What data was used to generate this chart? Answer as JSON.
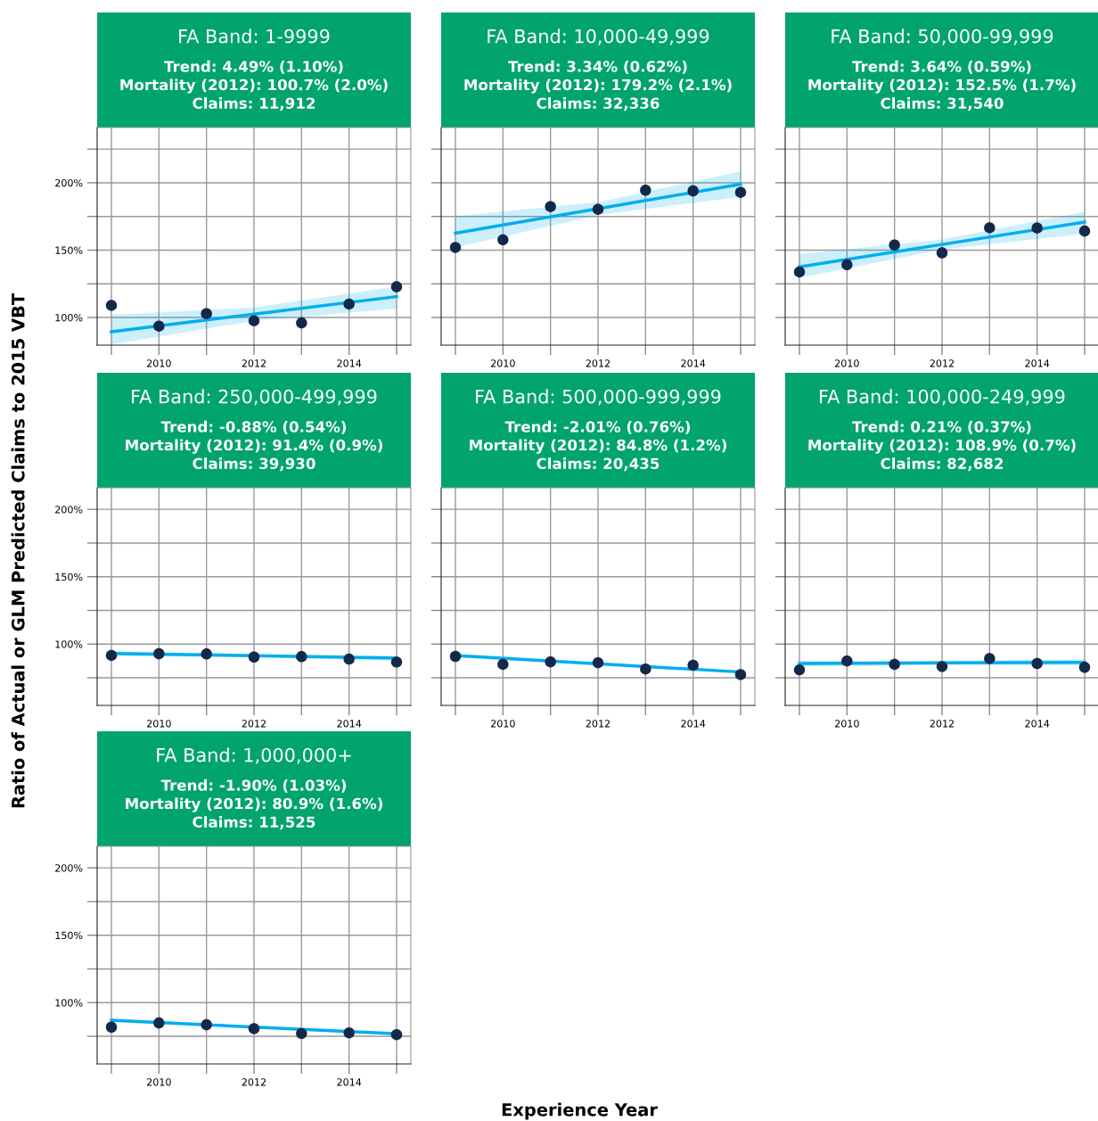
{
  "chart_data": [
    {
      "type": "scatter",
      "title": "FA Band: 1-9999",
      "subtitle": "Trend: 4.49% (1.10%)\nMortality (2012): 100.7% (2.0%)\nClaims: 11,912",
      "ylabel": "Ratio of Actual or GLM Predicted Claims to 2015 VBT",
      "xlabel": "Experience Year",
      "x": [
        2009,
        2010,
        2011,
        2012,
        2013,
        2014,
        2015
      ],
      "xlim": [
        2008.7,
        2015.3
      ],
      "xticks": [
        {
          "value": 2009,
          "label": null
        },
        2010,
        {
          "value": 2011,
          "label": null
        },
        2012,
        {
          "value": 2013,
          "label": null
        },
        2014,
        {
          "value": 2015,
          "label": null
        }
      ],
      "ylim": [
        79.5,
        241
      ],
      "yticks": [
        {
          "value": 100,
          "label": "100%"
        },
        {
          "value": 125,
          "label": null
        },
        {
          "value": 150,
          "label": "150%"
        },
        {
          "value": 175,
          "label": null
        },
        {
          "value": 200,
          "label": "200%"
        },
        {
          "value": 225,
          "label": null
        }
      ],
      "grid": true,
      "series": [
        {
          "type": "line",
          "x": [
            2009,
            2012,
            2015
          ],
          "values": [
            89.4,
            102.5,
            115.5
          ],
          "lower": [
            80,
            97.5,
            106.6
          ],
          "upper": [
            102,
            107.5,
            123
          ],
          "color": "#00aeef"
        },
        {
          "marker": "circle",
          "values": [
            109,
            93.6,
            102.9,
            97.6,
            96,
            110,
            122.8
          ],
          "color": "#13294b"
        }
      ]
    },
    {
      "type": "scatter",
      "title": "FA Band: 10,000-49,999",
      "subtitle": "Trend: 3.34% (0.62%)\nMortality (2012): 179.2% (2.1%)\nClaims: 32,336",
      "x": [
        2009,
        2010,
        2011,
        2012,
        2013,
        2014,
        2015
      ],
      "xlim": [
        2008.7,
        2015.3
      ],
      "xticks": [
        {
          "value": 2009,
          "label": null
        },
        2010,
        {
          "value": 2011,
          "label": null
        },
        2012,
        {
          "value": 2013,
          "label": null
        },
        2014,
        {
          "value": 2015,
          "label": null
        }
      ],
      "ylim": [
        79.5,
        241
      ],
      "yticks": [
        {
          "value": 100,
          "label": null
        },
        {
          "value": 125,
          "label": null
        },
        {
          "value": 150,
          "label": null
        },
        {
          "value": 175,
          "label": null
        },
        {
          "value": 200,
          "label": null
        },
        {
          "value": 225,
          "label": null
        }
      ],
      "tick_labels": "x",
      "grid": true,
      "series": [
        {
          "type": "line",
          "x": [
            2009,
            2012,
            2015
          ],
          "values": [
            162.6,
            180.8,
            198.9
          ],
          "lower": [
            152,
            176,
            189.6
          ],
          "upper": [
            175.2,
            185.5,
            208.4
          ],
          "color": "#00aeef"
        },
        {
          "marker": "circle",
          "values": [
            152,
            157.7,
            182.3,
            180.3,
            194.5,
            194,
            192.9
          ],
          "color": "#13294b"
        }
      ]
    },
    {
      "type": "scatter",
      "title": "FA Band: 50,000-99,999",
      "subtitle": "Trend: 3.64% (0.59%)\nMortality (2012): 152.5% (1.7%)\nClaims: 31,540",
      "x": [
        2009,
        2010,
        2011,
        2012,
        2013,
        2014,
        2015
      ],
      "xlim": [
        2008.7,
        2015.3
      ],
      "xticks": [
        {
          "value": 2009,
          "label": null
        },
        2010,
        {
          "value": 2011,
          "label": null
        },
        2012,
        {
          "value": 2013,
          "label": null
        },
        2014,
        {
          "value": 2015,
          "label": null
        }
      ],
      "ylim": [
        79.5,
        241
      ],
      "yticks": [
        {
          "value": 100,
          "label": null
        },
        {
          "value": 125,
          "label": null
        },
        {
          "value": 150,
          "label": null
        },
        {
          "value": 175,
          "label": null
        },
        {
          "value": 200,
          "label": null
        },
        {
          "value": 225,
          "label": null
        }
      ],
      "tick_labels": "x",
      "grid": true,
      "series": [
        {
          "type": "line",
          "x": [
            2009,
            2012,
            2015
          ],
          "values": [
            137.6,
            154.2,
            170.8
          ],
          "lower": [
            129.4,
            150.5,
            162
          ],
          "upper": [
            147,
            158,
            178.5
          ],
          "color": "#00aeef"
        },
        {
          "marker": "circle",
          "values": [
            133.8,
            139.2,
            153.8,
            148,
            166.6,
            166.4,
            164.2
          ],
          "color": "#13294b"
        }
      ]
    },
    {
      "type": "scatter",
      "title": "FA Band: 250,000-499,999",
      "subtitle": "Trend: -0.88% (0.54%)\nMortality (2012): 91.4% (0.9%)\nClaims: 39,930",
      "x": [
        2009,
        2010,
        2011,
        2012,
        2013,
        2014,
        2015
      ],
      "xlim": [
        2008.7,
        2015.3
      ],
      "xticks": [
        {
          "value": 2009,
          "label": null
        },
        2010,
        {
          "value": 2011,
          "label": null
        },
        2012,
        {
          "value": 2013,
          "label": null
        },
        2014,
        {
          "value": 2015,
          "label": null
        }
      ],
      "ylim": [
        54.5,
        216
      ],
      "yticks": [
        {
          "value": 75,
          "label": null
        },
        {
          "value": 100,
          "label": "100%"
        },
        {
          "value": 125,
          "label": null
        },
        {
          "value": 150,
          "label": "150%"
        },
        {
          "value": 175,
          "label": null
        },
        {
          "value": 200,
          "label": "200%"
        }
      ],
      "grid": true,
      "series": [
        {
          "type": "line",
          "x": [
            2009,
            2012,
            2015
          ],
          "values": [
            93.1,
            91.4,
            89.6
          ],
          "lower": [
            91.3,
            90.2,
            87.8
          ],
          "upper": [
            94.9,
            92.6,
            91.4
          ],
          "color": "#00aeef"
        },
        {
          "marker": "circle",
          "values": [
            91.6,
            92.9,
            92.7,
            90.4,
            90.7,
            88.9,
            86.7
          ],
          "color": "#13294b"
        }
      ]
    },
    {
      "type": "scatter",
      "title": "FA Band: 500,000-999,999",
      "subtitle": "Trend: -2.01% (0.76%)\nMortality (2012): 84.8% (1.2%)\nClaims: 20,435",
      "x": [
        2009,
        2010,
        2011,
        2012,
        2013,
        2014,
        2015
      ],
      "xlim": [
        2008.7,
        2015.3
      ],
      "xticks": [
        {
          "value": 2009,
          "label": null
        },
        2010,
        {
          "value": 2011,
          "label": null
        },
        2012,
        {
          "value": 2013,
          "label": null
        },
        2014,
        {
          "value": 2015,
          "label": null
        }
      ],
      "ylim": [
        54.5,
        216
      ],
      "yticks": [
        {
          "value": 75,
          "label": null
        },
        {
          "value": 100,
          "label": null
        },
        {
          "value": 125,
          "label": null
        },
        {
          "value": 150,
          "label": null
        },
        {
          "value": 175,
          "label": null
        },
        {
          "value": 200,
          "label": null
        }
      ],
      "tick_labels": "x",
      "grid": true,
      "series": [
        {
          "type": "line",
          "x": [
            2009,
            2015
          ],
          "values": [
            91.5,
            79.3
          ],
          "color": "#00aeef"
        },
        {
          "marker": "circle",
          "values": [
            90.9,
            85,
            86.8,
            86.2,
            81.5,
            84.3,
            77.4
          ],
          "color": "#13294b"
        }
      ]
    },
    {
      "type": "scatter",
      "title": "FA Band: 100,000-249,999",
      "subtitle": "Trend: 0.21% (0.37%)\nMortality (2012): 108.9% (0.7%)\nClaims: 82,682",
      "x": [
        2009,
        2010,
        2011,
        2012,
        2013,
        2014,
        2015
      ],
      "xlim": [
        2008.7,
        2015.3
      ],
      "xticks": [
        {
          "value": 2009,
          "label": null
        },
        2010,
        {
          "value": 2011,
          "label": null
        },
        2012,
        {
          "value": 2013,
          "label": null
        },
        2014,
        {
          "value": 2015,
          "label": null
        }
      ],
      "ylim": [
        54.5,
        216
      ],
      "yticks": [
        {
          "value": 75,
          "label": null
        },
        {
          "value": 100,
          "label": null
        },
        {
          "value": 125,
          "label": null
        },
        {
          "value": 150,
          "label": null
        },
        {
          "value": 175,
          "label": null
        },
        {
          "value": 200,
          "label": null
        }
      ],
      "tick_labels": "x",
      "grid": true,
      "series": [
        {
          "type": "line",
          "x": [
            2009,
            2012,
            2015
          ],
          "values": [
            85.6,
            86.1,
            86.5
          ],
          "lower": [
            83.4,
            84.6,
            84.3
          ],
          "upper": [
            87.8,
            87.6,
            88.7
          ],
          "color": "#00aeef"
        },
        {
          "marker": "circle",
          "values": [
            80.9,
            87.5,
            85,
            83.4,
            89.3,
            85.6,
            82.8
          ],
          "color": "#13294b"
        }
      ]
    },
    {
      "type": "scatter",
      "title": "FA Band: 1,000,000+",
      "subtitle": "Trend: -1.90% (1.03%)\nMortality (2012): 80.9% (1.6%)\nClaims: 11,525",
      "x": [
        2009,
        2010,
        2011,
        2012,
        2013,
        2014,
        2015
      ],
      "xlim": [
        2008.7,
        2015.3
      ],
      "xticks": [
        {
          "value": 2009,
          "label": null
        },
        2010,
        {
          "value": 2011,
          "label": null
        },
        2012,
        {
          "value": 2013,
          "label": null
        },
        2014,
        {
          "value": 2015,
          "label": null
        }
      ],
      "ylim": [
        54.5,
        216
      ],
      "yticks": [
        {
          "value": 75,
          "label": null
        },
        {
          "value": 100,
          "label": "100%"
        },
        {
          "value": 125,
          "label": null
        },
        {
          "value": 150,
          "label": "150%"
        },
        {
          "value": 175,
          "label": null
        },
        {
          "value": 200,
          "label": "200%"
        }
      ],
      "grid": true,
      "series": [
        {
          "type": "line",
          "x": [
            2009,
            2015
          ],
          "values": [
            86.9,
            76.9
          ],
          "color": "#00aeef"
        },
        {
          "marker": "circle",
          "values": [
            81.8,
            84.9,
            83.6,
            80.7,
            77.1,
            77.6,
            76.2
          ],
          "color": "#13294b"
        }
      ]
    }
  ]
}
